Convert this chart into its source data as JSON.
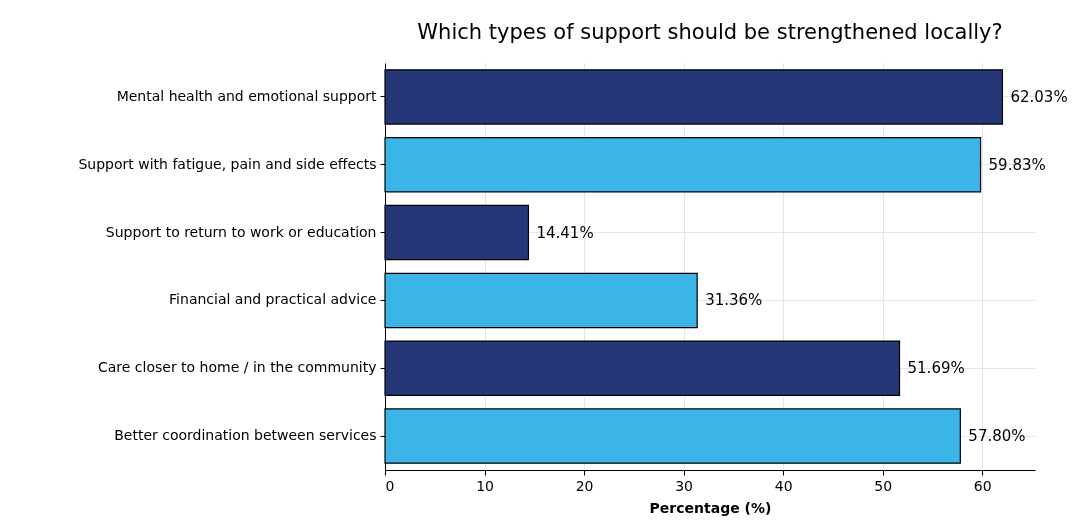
{
  "chart_data": {
    "type": "bar",
    "orientation": "horizontal",
    "title": "Which types of support should be strengthened locally?",
    "xlabel": "Percentage (%)",
    "categories": [
      "Mental health and emotional support",
      "Support with fatigue, pain and side effects",
      "Support to return to work or education",
      "Financial and practical advice",
      "Care closer to home / in the community",
      "Better coordination between services"
    ],
    "values": [
      62.03,
      59.83,
      14.41,
      31.36,
      51.69,
      57.8
    ],
    "value_labels": [
      "62.03%",
      "59.83%",
      "14.41%",
      "31.36%",
      "51.69%",
      "57.80%"
    ],
    "colors": [
      "#263778",
      "#3bb4e8",
      "#263778",
      "#3bb4e8",
      "#263778",
      "#3bb4e8"
    ],
    "xlim": [
      0,
      65.3
    ],
    "xticks": [
      0,
      10,
      20,
      30,
      40,
      50,
      60
    ],
    "grid": true,
    "legend": false
  }
}
